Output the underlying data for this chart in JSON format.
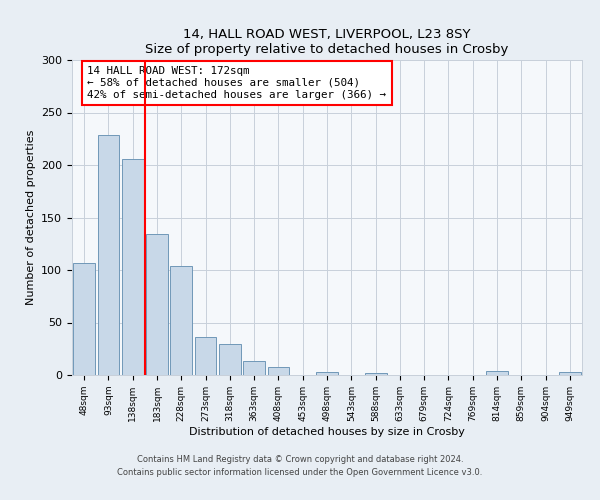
{
  "title1": "14, HALL ROAD WEST, LIVERPOOL, L23 8SY",
  "title2": "Size of property relative to detached houses in Crosby",
  "xlabel": "Distribution of detached houses by size in Crosby",
  "ylabel": "Number of detached properties",
  "bar_labels": [
    "48sqm",
    "93sqm",
    "138sqm",
    "183sqm",
    "228sqm",
    "273sqm",
    "318sqm",
    "363sqm",
    "408sqm",
    "453sqm",
    "498sqm",
    "543sqm",
    "588sqm",
    "633sqm",
    "679sqm",
    "724sqm",
    "769sqm",
    "814sqm",
    "859sqm",
    "904sqm",
    "949sqm"
  ],
  "bar_values": [
    107,
    229,
    206,
    134,
    104,
    36,
    30,
    13,
    8,
    0,
    3,
    0,
    2,
    0,
    0,
    0,
    0,
    4,
    0,
    0,
    3
  ],
  "bar_color": "#c8d8e8",
  "bar_edge_color": "#7098b8",
  "marker_color": "red",
  "annotation_title": "14 HALL ROAD WEST: 172sqm",
  "annotation_line1": "← 58% of detached houses are smaller (504)",
  "annotation_line2": "42% of semi-detached houses are larger (366) →",
  "ylim": [
    0,
    300
  ],
  "yticks": [
    0,
    50,
    100,
    150,
    200,
    250,
    300
  ],
  "footer1": "Contains HM Land Registry data © Crown copyright and database right 2024.",
  "footer2": "Contains public sector information licensed under the Open Government Licence v3.0.",
  "bg_color": "#e8eef4",
  "plot_bg_color": "#f5f8fb",
  "grid_color": "#c8d0da"
}
